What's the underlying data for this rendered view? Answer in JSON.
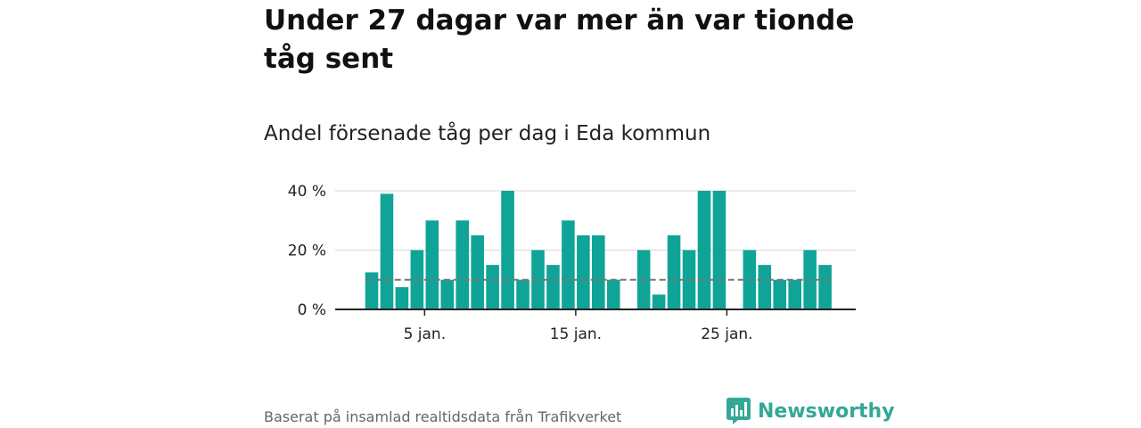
{
  "title": "Under 27 dagar var mer än var tionde tåg sent",
  "subtitle": "Andel försenade tåg per dag i Eda kommun",
  "footer": "Baserat på insamlad realtidsdata från Trafikverket",
  "brand": "Newsworthy",
  "colors": {
    "bar": "#0fa497",
    "grid": "#dddddd",
    "reference_line": "#777777",
    "brand": "#33a896"
  },
  "chart_data": {
    "type": "bar",
    "x": [
      1,
      2,
      3,
      4,
      5,
      6,
      7,
      8,
      9,
      10,
      11,
      12,
      13,
      14,
      15,
      16,
      17,
      18,
      19,
      20,
      21,
      22,
      23,
      24,
      25,
      26,
      27,
      28,
      29,
      30,
      31
    ],
    "values": [
      12.5,
      39,
      7.5,
      20,
      30,
      10,
      30,
      25,
      15,
      40,
      10,
      20,
      15,
      30,
      25,
      25,
      10,
      null,
      20,
      5,
      25,
      20,
      40,
      40,
      null,
      20,
      15,
      10,
      10,
      20,
      15
    ],
    "reference_value": 10,
    "ylim": [
      0,
      40
    ],
    "yticks": [
      0,
      20,
      40
    ],
    "ytick_labels": [
      "0 %",
      "20 %",
      "40 %"
    ],
    "xticks": [
      5,
      15,
      25
    ],
    "xtick_labels": [
      "5 jan.",
      "15 jan.",
      "25 jan."
    ],
    "grid": true,
    "legend": "none"
  }
}
